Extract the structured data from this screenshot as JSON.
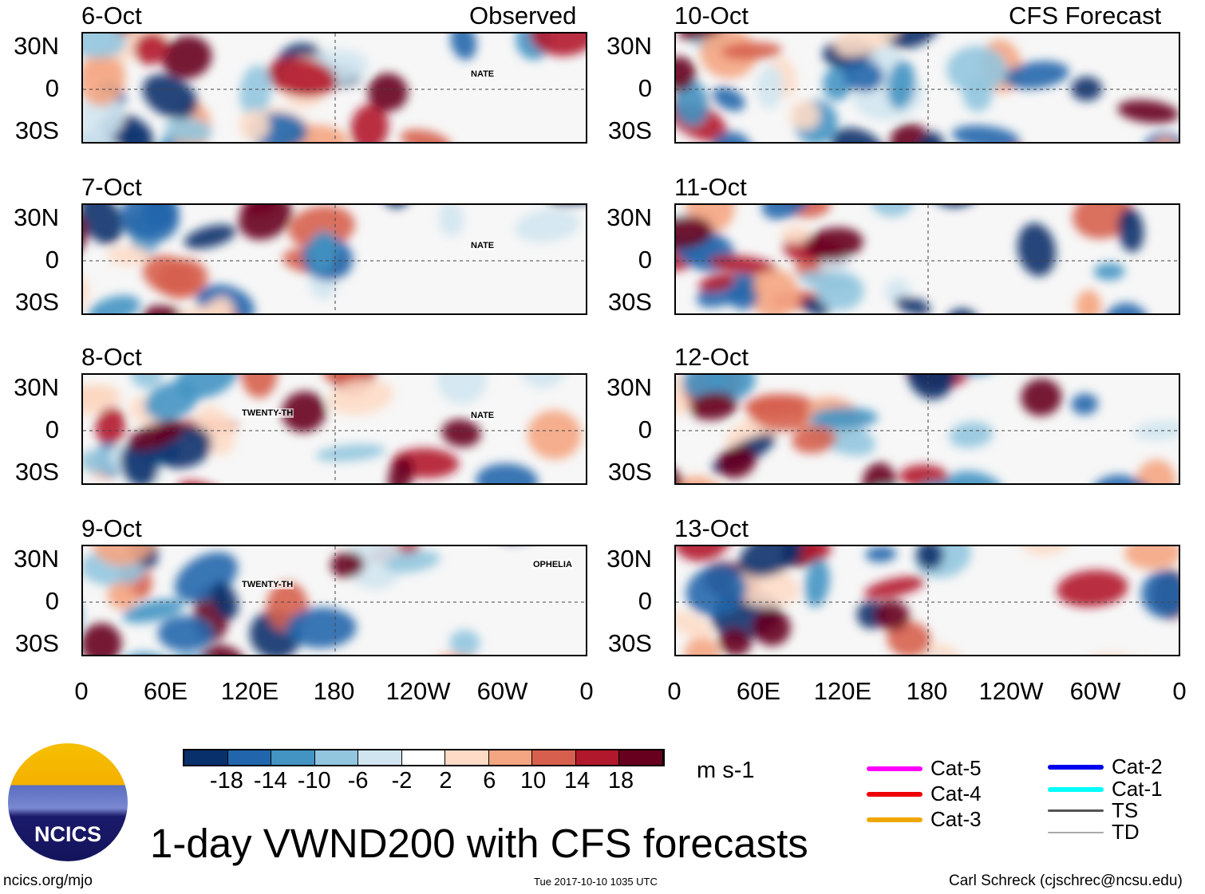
{
  "left_header": "Observed",
  "right_header": "CFS Forecast",
  "panels_left": [
    {
      "date": "6-Oct",
      "storms": [
        {
          "name": "NATE"
        }
      ]
    },
    {
      "date": "7-Oct",
      "storms": [
        {
          "name": "NATE"
        }
      ]
    },
    {
      "date": "8-Oct",
      "storms": [
        {
          "name": "TWENTY-TH"
        },
        {
          "name": "NATE"
        }
      ]
    },
    {
      "date": "9-Oct",
      "storms": [
        {
          "name": "TWENTY-TH"
        },
        {
          "name": "OPHELIA"
        }
      ]
    }
  ],
  "panels_right": [
    {
      "date": "10-Oct"
    },
    {
      "date": "11-Oct"
    },
    {
      "date": "12-Oct"
    },
    {
      "date": "13-Oct"
    }
  ],
  "lat_labels": [
    "30N",
    "0",
    "30S"
  ],
  "lon_labels": [
    "0",
    "60E",
    "120E",
    "180",
    "120W",
    "60W",
    "0"
  ],
  "colorbar": {
    "colors": [
      "#08306b",
      "#2166ac",
      "#4393c3",
      "#92c5de",
      "#d1e5f0",
      "#ffffff",
      "#fddbc7",
      "#f4a582",
      "#d6604d",
      "#b2182b",
      "#67001f"
    ],
    "ticks": [
      "-18",
      "-14",
      "-10",
      "-6",
      "-2",
      "2",
      "6",
      "10",
      "14",
      "18"
    ],
    "units": "m s-1"
  },
  "legend": [
    {
      "label": "Cat-5",
      "color": "#ff00ff"
    },
    {
      "label": "Cat-4",
      "color": "#ee0000"
    },
    {
      "label": "Cat-3",
      "color": "#f0a800"
    },
    {
      "label": "Cat-2",
      "color": "#0000ee"
    },
    {
      "label": "Cat-1",
      "color": "#00ffff"
    },
    {
      "label": "TS",
      "color": "#555555"
    },
    {
      "label": "TD",
      "color": "#aaaaaa"
    }
  ],
  "title": "1-day VWND200 with CFS forecasts",
  "logo_text": "NCICS",
  "footer": {
    "left": "ncics.org/mjo",
    "center": "Tue 2017-10-10 1035 UTC",
    "right": "Carl Schreck (cjschrec@ncsu.edu)"
  }
}
